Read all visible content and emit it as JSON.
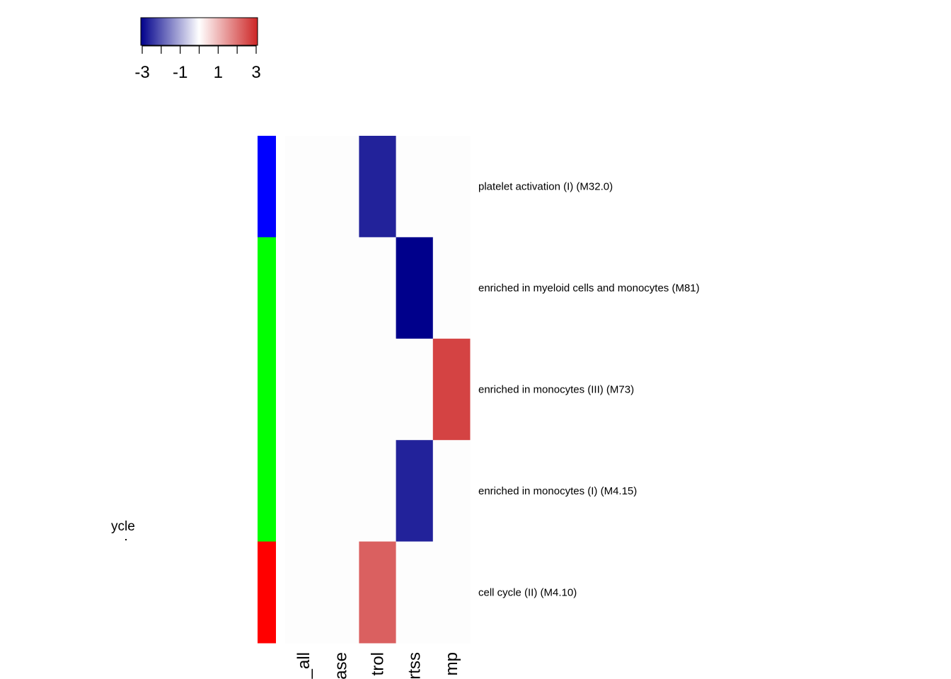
{
  "chart_data": {
    "type": "heatmap",
    "color_key": {
      "range": [
        -3,
        3
      ],
      "tick_labels": [
        "-3",
        "-1",
        "1",
        "3"
      ],
      "low_color": "#00008B",
      "mid_color": "#FFFFFF",
      "high_color": "#CD2626"
    },
    "columns": [
      "_all",
      "ase",
      "trol",
      "rtss",
      "mp"
    ],
    "rows": [
      {
        "label": "platelet activation (I) (M32.0)",
        "group_color": "#0000FF",
        "values": [
          0,
          0,
          -2.6,
          0,
          0
        ]
      },
      {
        "label": "enriched in myeloid cells and monocytes (M81)",
        "group_color": "#00FF00",
        "values": [
          0,
          0,
          0,
          -3.0,
          0
        ]
      },
      {
        "label": "enriched in monocytes (III) (M73)",
        "group_color": "#00FF00",
        "values": [
          0,
          0,
          0,
          0,
          2.6
        ]
      },
      {
        "label": "enriched in monocytes (I) (M4.15)",
        "group_color": "#00FF00",
        "values": [
          0,
          0,
          0,
          -2.6,
          0
        ]
      },
      {
        "label": "cell cycle (II) (M4.10)",
        "group_color": "#FF0000",
        "values": [
          0,
          0,
          2.2,
          0,
          0
        ]
      }
    ]
  },
  "stray_text": "ycle"
}
